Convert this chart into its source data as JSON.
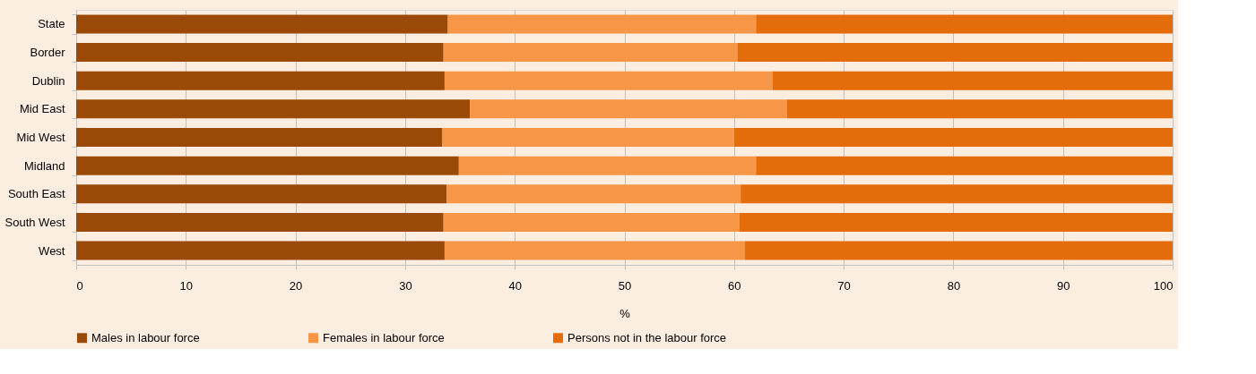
{
  "chart_data": {
    "type": "bar",
    "orientation": "horizontal",
    "stacked": true,
    "xlabel": "%",
    "categories": [
      "State",
      "Border",
      "Dublin",
      "Mid East",
      "Mid West",
      "Midland",
      "South East",
      "South West",
      "West"
    ],
    "series": [
      {
        "name": "Males in labour force",
        "color": "#9a4a06",
        "values": [
          33.9,
          33.5,
          33.6,
          35.9,
          33.4,
          34.9,
          33.8,
          33.5,
          33.6
        ]
      },
      {
        "name": "Females in labour force",
        "color": "#f79646",
        "values": [
          28.1,
          26.8,
          29.9,
          28.9,
          26.6,
          27.1,
          26.8,
          27.0,
          27.4
        ]
      },
      {
        "name": "Persons not in the labour force",
        "color": "#e46c0a",
        "values": [
          38.0,
          39.7,
          36.5,
          35.2,
          40.0,
          38.0,
          39.4,
          39.5,
          39.0
        ]
      }
    ],
    "xlim": [
      0,
      100
    ],
    "xticks": [
      0,
      10,
      20,
      30,
      40,
      50,
      60,
      70,
      80,
      90,
      100
    ],
    "grid": "x",
    "legend": "bottom"
  }
}
